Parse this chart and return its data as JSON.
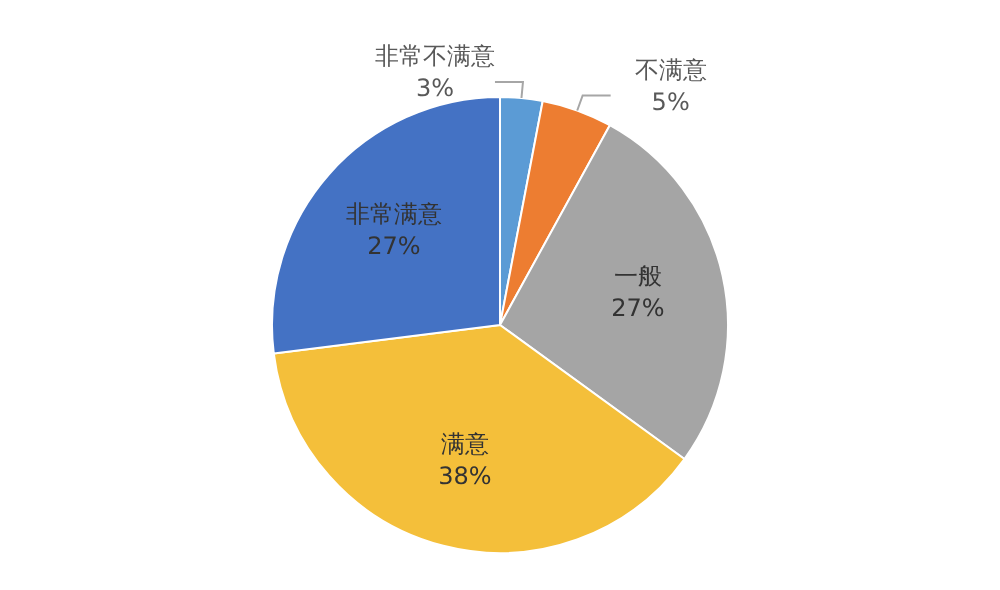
{
  "chart_data": {
    "type": "pie",
    "categories": [
      "非常不满意",
      "不满意",
      "一般",
      "满意",
      "非常满意"
    ],
    "values": [
      3,
      5,
      27,
      38,
      27
    ],
    "colors": [
      "#5b9bd5",
      "#ed7d31",
      "#a5a5a5",
      "#f4bf3a",
      "#4472c4"
    ],
    "value_labels": [
      "3%",
      "5%",
      "27%",
      "38%",
      "27%"
    ],
    "legend": false
  }
}
